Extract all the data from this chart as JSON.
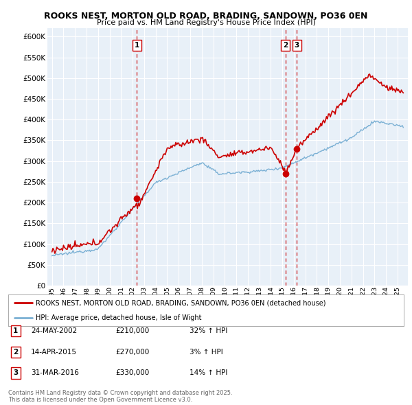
{
  "title": "ROOKS NEST, MORTON OLD ROAD, BRADING, SANDOWN, PO36 0EN",
  "subtitle": "Price paid vs. HM Land Registry's House Price Index (HPI)",
  "legend_label_red": "ROOKS NEST, MORTON OLD ROAD, BRADING, SANDOWN, PO36 0EN (detached house)",
  "legend_label_blue": "HPI: Average price, detached house, Isle of Wight",
  "footer": "Contains HM Land Registry data © Crown copyright and database right 2025.\nThis data is licensed under the Open Government Licence v3.0.",
  "transactions": [
    {
      "num": 1,
      "date": "24-MAY-2002",
      "price": "£210,000",
      "hpi": "32% ↑ HPI",
      "year": 2002.38
    },
    {
      "num": 2,
      "date": "14-APR-2015",
      "price": "£270,000",
      "hpi": "3% ↑ HPI",
      "year": 2015.28
    },
    {
      "num": 3,
      "date": "31-MAR-2016",
      "price": "£330,000",
      "hpi": "14% ↑ HPI",
      "year": 2016.25
    }
  ],
  "trans_prices": [
    210000,
    270000,
    330000
  ],
  "ylim": [
    0,
    620000
  ],
  "yticks": [
    0,
    50000,
    100000,
    150000,
    200000,
    250000,
    300000,
    350000,
    400000,
    450000,
    500000,
    550000,
    600000
  ],
  "xlim_start": 1994.6,
  "xlim_end": 2025.9,
  "red_color": "#cc0000",
  "blue_color": "#7ab0d4",
  "plot_bg_color": "#e8f0f8",
  "background_color": "#ffffff",
  "grid_color": "#ffffff",
  "dashed_color": "#cc0000"
}
